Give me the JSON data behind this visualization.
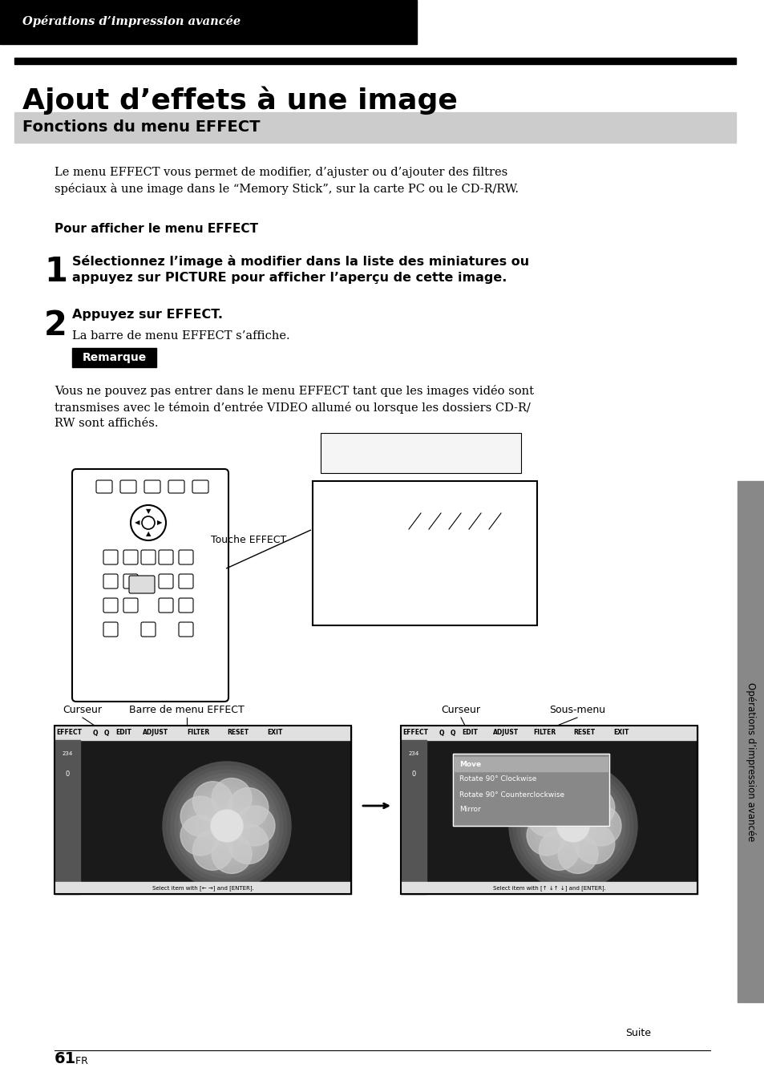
{
  "page_bg": "#ffffff",
  "header_bg": "#000000",
  "header_text": "Opérations d’impression avancée",
  "header_text_color": "#ffffff",
  "title_bar_bg": "#000000",
  "title": "Ajout d’effets à une image",
  "section_bg": "#cccccc",
  "section_title": "Fonctions du menu EFFECT",
  "body_text_1": "Le menu EFFECT vous permet de modifier, d’ajuster ou d’ajouter des filtres\nspéciaux à une image dans le “Memory Stick”, sur la carte PC ou le CD-R/RW.",
  "subheader": "Pour afficher le menu EFFECT",
  "step1_num": "1",
  "step1_text": "Sélectionnez l’image à modifier dans la liste des miniatures ou\nappuyez sur PICTURE pour afficher l’aperçu de cette image.",
  "step2_num": "2",
  "step2_text": "Appuyez sur EFFECT.",
  "step2_sub": "La barre de menu EFFECT s’affiche.",
  "note_bg": "#000000",
  "note_text": "Remarque",
  "note_text_color": "#ffffff",
  "note_body": "Vous ne pouvez pas entrer dans le menu EFFECT tant que les images vidéo sont\ntransmises avec le témoin d’entrée VIDEO allumé ou lorsque les dossiers CD-R/\nRW sont affichés.",
  "label_touche": "Touche EFFECT",
  "label_curseur1": "Curseur",
  "label_barre": "Barre de menu EFFECT",
  "label_curseur2": "Curseur",
  "label_sousmenu": "Sous-menu",
  "sidebar_text": "Opérations d’impression avancée",
  "sidebar_bg": "#888888",
  "footer_text": "Suite",
  "page_num": "61",
  "page_num_suffix": " FR"
}
